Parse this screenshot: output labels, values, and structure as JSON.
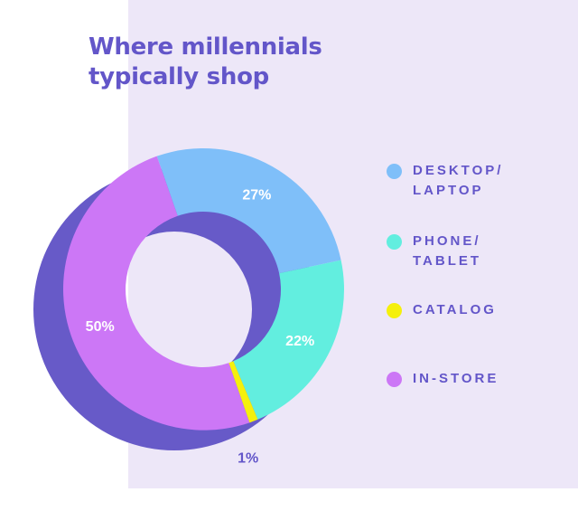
{
  "title_lines": [
    "Where millennials",
    "typically shop"
  ],
  "colors": {
    "background_panel": "#ede7f8",
    "text": "#6356c9",
    "shadow": "#675ac8",
    "label_text": "#ffffff"
  },
  "chart_data": {
    "type": "pie",
    "title": "Where millennials typically shop",
    "donut": true,
    "slices": [
      {
        "label": "DESKTOP/\nLAPTOP",
        "value": 27,
        "display": "27%",
        "color": "#7fbff9"
      },
      {
        "label": "PHONE/\nTABLET",
        "value": 22,
        "display": "22%",
        "color": "#62eedf"
      },
      {
        "label": "CATALOG",
        "value": 1,
        "display": "1%",
        "color": "#f5f00c"
      },
      {
        "label": "IN-STORE",
        "value": 50,
        "display": "50%",
        "color": "#cc77f6"
      }
    ],
    "legend_placement": "right"
  }
}
